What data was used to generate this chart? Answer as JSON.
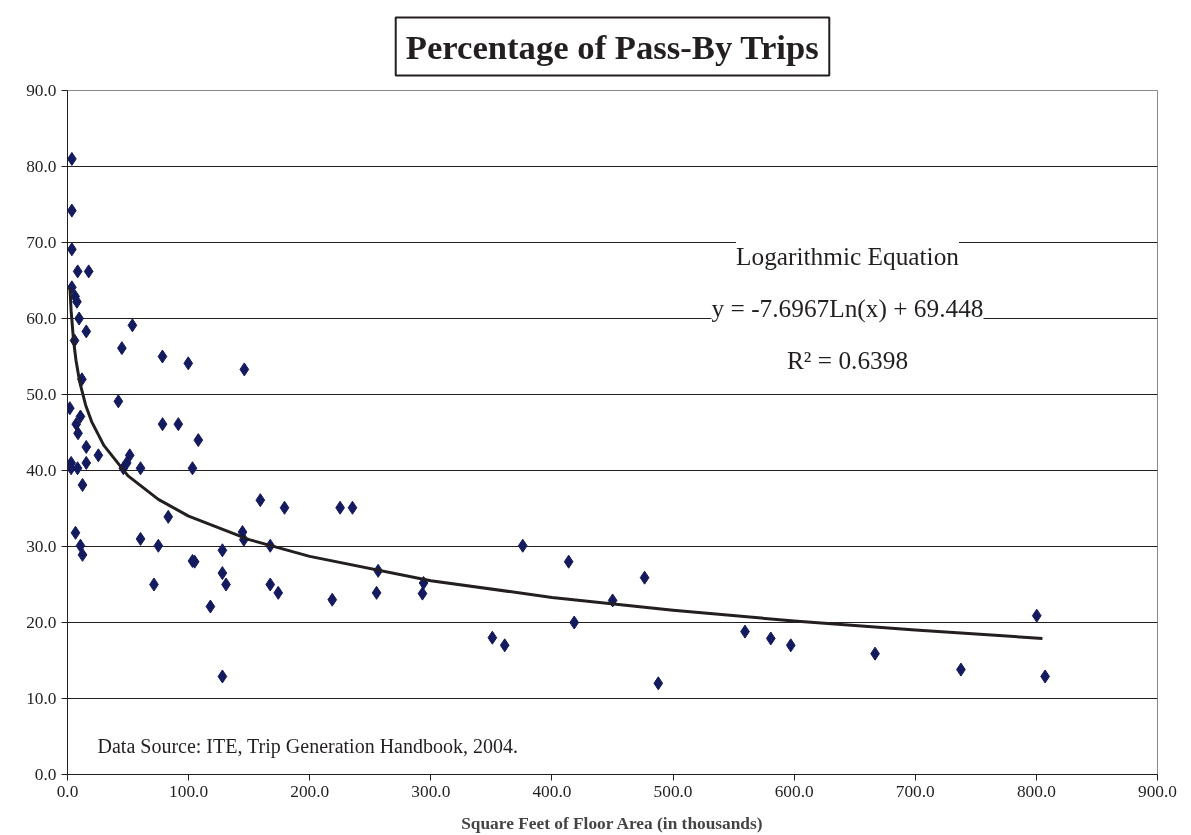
{
  "chart_data": {
    "type": "scatter",
    "title": "Percentage of Pass-By Trips",
    "xlabel": "Square Feet of Floor Area (in thousands)",
    "annotations": [
      "Logarithmic Equation",
      "y = -7.6967Ln(x) + 69.448",
      "R² = 0.6398",
      "Data Source:  ITE, Trip Generation Handbook, 2004."
    ],
    "series": [
      {
        "type": "scatter",
        "color": "#141a5e",
        "marker": "diamond",
        "x": [
          3.6,
          3.6,
          3.6,
          8.4,
          17.5,
          3.6,
          6.3,
          7.8,
          9.6,
          15.5,
          5.8,
          44.9,
          53.6,
          78.4,
          99.7,
          146.0,
          11.9,
          1.9,
          42.0,
          10.7,
          7.2,
          8.7,
          78.5,
          91.5,
          108.0,
          15.5,
          25.5,
          3.0,
          3.0,
          8.3,
          15.5,
          46.1,
          51.4,
          48.9,
          60.3,
          103.2,
          12.4,
          159.2,
          179.2,
          225.1,
          235.3,
          83.2,
          6.6,
          60.3,
          144.5,
          145.6,
          10.7,
          12.4,
          75.0,
          167.4,
          103.2,
          105.0,
          127.9,
          127.9,
          130.9,
          71.4,
          167.4,
          174.0,
          118.0,
          218.6,
          127.9,
          256.5,
          255.2,
          294.0,
          293.1,
          375.9,
          413.8,
          476.5,
          450.1,
          418.4,
          350.8,
          361.0,
          487.8,
          559.4,
          580.7,
          597.2,
          666.8,
          737.7,
          800.3,
          807.2
        ],
        "values": [
          81.0,
          74.2,
          69.1,
          66.2,
          66.2,
          64.1,
          62.9,
          62.2,
          60.0,
          58.3,
          57.1,
          56.1,
          59.1,
          55.0,
          54.1,
          53.3,
          52.0,
          48.2,
          49.1,
          47.1,
          46.1,
          44.9,
          46.1,
          46.1,
          44.0,
          43.1,
          42.0,
          41.0,
          40.3,
          40.3,
          41.0,
          40.3,
          42.0,
          41.0,
          40.3,
          40.3,
          38.1,
          36.1,
          35.1,
          35.1,
          35.1,
          33.9,
          31.8,
          31.0,
          31.9,
          30.9,
          30.1,
          28.9,
          30.1,
          30.1,
          28.1,
          28.0,
          29.5,
          26.5,
          25.0,
          25.0,
          25.0,
          23.9,
          22.1,
          23.0,
          12.9,
          26.8,
          23.9,
          25.2,
          23.8,
          30.1,
          28.0,
          25.9,
          22.9,
          20.0,
          18.0,
          17.0,
          12.0,
          18.8,
          17.9,
          17.0,
          15.9,
          13.8,
          20.9,
          12.9
        ]
      },
      {
        "type": "line",
        "color": "#231f20",
        "marker": "none",
        "line_style": "solid",
        "x": [
          2,
          3,
          5,
          7,
          10,
          15,
          20,
          30,
          50,
          75,
          100,
          150,
          200,
          300,
          400,
          500,
          600,
          700,
          805
        ],
        "values": [
          64.1,
          61.0,
          57.1,
          54.5,
          51.7,
          48.6,
          46.4,
          43.3,
          39.3,
          36.2,
          34.0,
          30.9,
          28.7,
          25.5,
          23.3,
          21.6,
          20.2,
          19.0,
          17.9
        ]
      }
    ],
    "xlim": [
      0,
      900
    ],
    "ylim": [
      0,
      90
    ],
    "xticks": [
      {
        "value": 0,
        "label": "0.0"
      },
      {
        "value": 100,
        "label": "100.0"
      },
      {
        "value": 200,
        "label": "200.0"
      },
      {
        "value": 300,
        "label": "300.0"
      },
      {
        "value": 400,
        "label": "400.0"
      },
      {
        "value": 500,
        "label": "500.0"
      },
      {
        "value": 600,
        "label": "600.0"
      },
      {
        "value": 700,
        "label": "700.0"
      },
      {
        "value": 800,
        "label": "800.0"
      },
      {
        "value": 900,
        "label": "900.0"
      }
    ],
    "yticks": [
      {
        "value": 0,
        "label": "0.0"
      },
      {
        "value": 10,
        "label": "10.0"
      },
      {
        "value": 20,
        "label": "20.0"
      },
      {
        "value": 30,
        "label": "30.0"
      },
      {
        "value": 40,
        "label": "40.0"
      },
      {
        "value": 50,
        "label": "50.0"
      },
      {
        "value": 60,
        "label": "60.0"
      },
      {
        "value": 70,
        "label": "70.0"
      },
      {
        "value": 80,
        "label": "80.0"
      },
      {
        "value": 90,
        "label": "90.0"
      }
    ],
    "grid": "y"
  }
}
